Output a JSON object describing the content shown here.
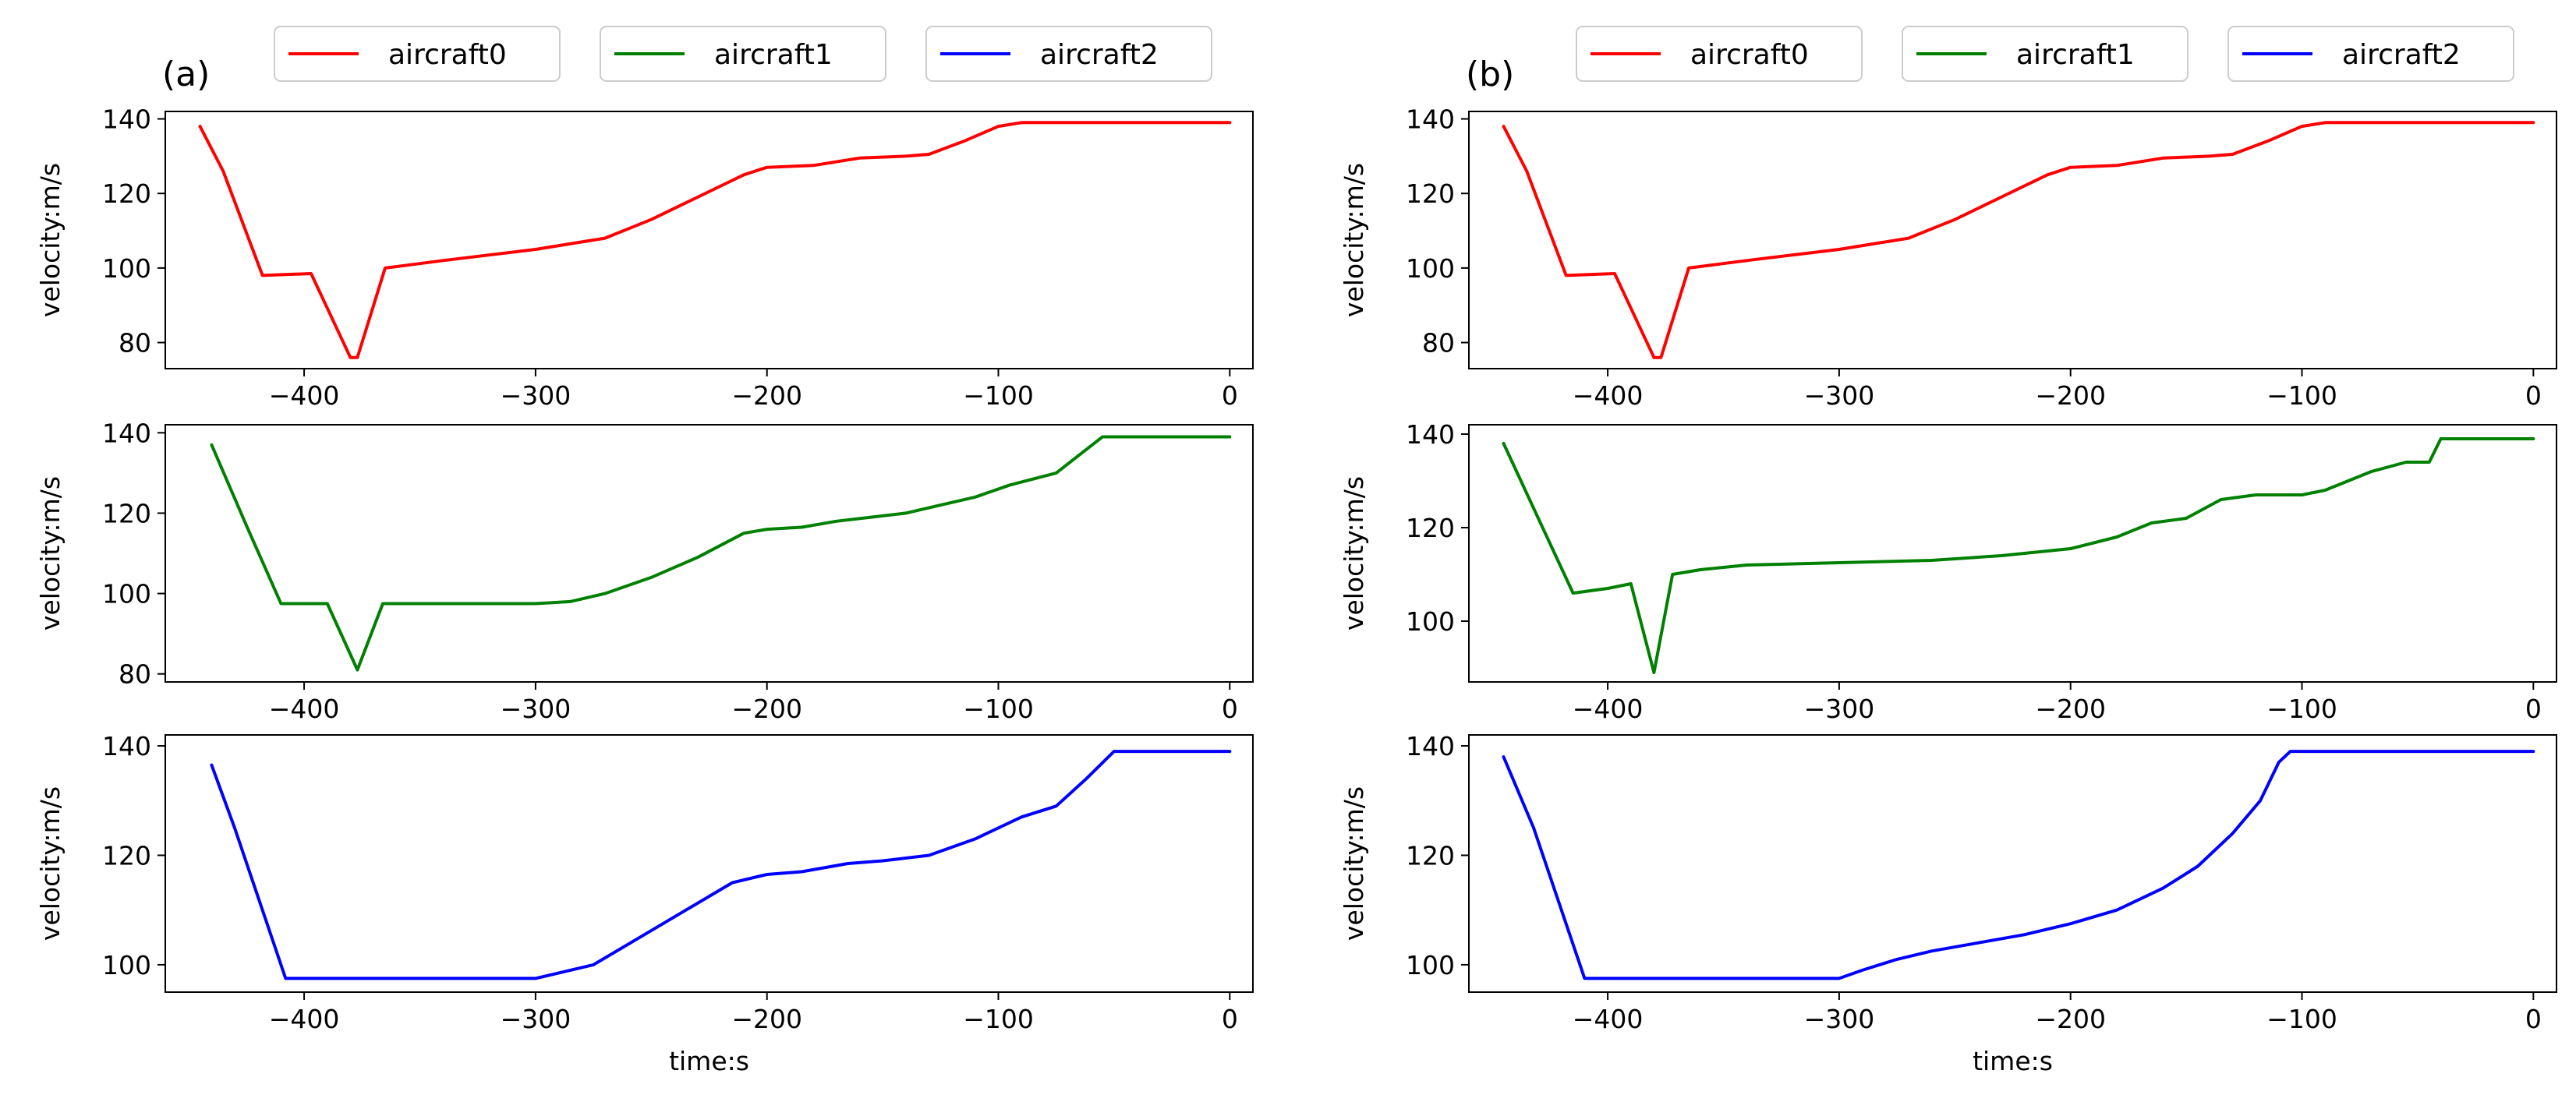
{
  "figure": {
    "panel_labels": [
      "(a)",
      "(b)"
    ],
    "legend": [
      {
        "label": "aircraft0",
        "color": "#ff0000"
      },
      {
        "label": "aircraft1",
        "color": "#008000"
      },
      {
        "label": "aircraft2",
        "color": "#0000ff"
      }
    ]
  },
  "chart_data": [
    {
      "type": "line",
      "panel": "(a)",
      "series_name": "aircraft0",
      "color": "#ff0000",
      "ylabel": "velocity:m/s",
      "xlabel": "",
      "xlim": [
        -460,
        10
      ],
      "ylim": [
        73,
        142
      ],
      "xticks": [
        -400,
        -300,
        -200,
        -100,
        0
      ],
      "xtick_labels": [
        "−400",
        "−300",
        "−200",
        "−100",
        "0"
      ],
      "yticks": [
        80,
        100,
        120,
        140
      ],
      "ytick_labels": [
        "80",
        "100",
        "120",
        "140"
      ],
      "points": [
        [
          -445,
          138
        ],
        [
          -435,
          126
        ],
        [
          -418,
          98
        ],
        [
          -397,
          98.5
        ],
        [
          -380,
          76
        ],
        [
          -377,
          76
        ],
        [
          -365,
          100
        ],
        [
          -340,
          102
        ],
        [
          -300,
          105
        ],
        [
          -270,
          108
        ],
        [
          -250,
          113
        ],
        [
          -230,
          119
        ],
        [
          -210,
          125
        ],
        [
          -200,
          127
        ],
        [
          -180,
          127.5
        ],
        [
          -160,
          129.5
        ],
        [
          -140,
          130
        ],
        [
          -130,
          130.5
        ],
        [
          -115,
          134
        ],
        [
          -100,
          138
        ],
        [
          -90,
          139
        ],
        [
          0,
          139
        ]
      ]
    },
    {
      "type": "line",
      "panel": "(a)",
      "series_name": "aircraft1",
      "color": "#008000",
      "ylabel": "velocity:m/s",
      "xlabel": "",
      "xlim": [
        -460,
        10
      ],
      "ylim": [
        78,
        142
      ],
      "xticks": [
        -400,
        -300,
        -200,
        -100,
        0
      ],
      "xtick_labels": [
        "−400",
        "−300",
        "−200",
        "−100",
        "0"
      ],
      "yticks": [
        80,
        100,
        120,
        140
      ],
      "ytick_labels": [
        "80",
        "100",
        "120",
        "140"
      ],
      "points": [
        [
          -440,
          137
        ],
        [
          -425,
          117
        ],
        [
          -410,
          97.5
        ],
        [
          -390,
          97.5
        ],
        [
          -377,
          81
        ],
        [
          -366,
          97.5
        ],
        [
          -300,
          97.5
        ],
        [
          -285,
          98
        ],
        [
          -270,
          100
        ],
        [
          -250,
          104
        ],
        [
          -230,
          109
        ],
        [
          -210,
          115
        ],
        [
          -200,
          116
        ],
        [
          -185,
          116.5
        ],
        [
          -170,
          118
        ],
        [
          -155,
          119
        ],
        [
          -140,
          120
        ],
        [
          -125,
          122
        ],
        [
          -110,
          124
        ],
        [
          -95,
          127
        ],
        [
          -75,
          130
        ],
        [
          -55,
          139
        ],
        [
          0,
          139
        ]
      ]
    },
    {
      "type": "line",
      "panel": "(a)",
      "series_name": "aircraft2",
      "color": "#0000ff",
      "ylabel": "velocity:m/s",
      "xlabel": "time:s",
      "xlim": [
        -460,
        10
      ],
      "ylim": [
        95,
        142
      ],
      "xticks": [
        -400,
        -300,
        -200,
        -100,
        0
      ],
      "xtick_labels": [
        "−400",
        "−300",
        "−200",
        "−100",
        "0"
      ],
      "yticks": [
        100,
        120,
        140
      ],
      "ytick_labels": [
        "100",
        "120",
        "140"
      ],
      "points": [
        [
          -440,
          136.5
        ],
        [
          -430,
          125
        ],
        [
          -408,
          97.5
        ],
        [
          -300,
          97.5
        ],
        [
          -290,
          98.5
        ],
        [
          -275,
          100
        ],
        [
          -255,
          105
        ],
        [
          -235,
          110
        ],
        [
          -215,
          115
        ],
        [
          -200,
          116.5
        ],
        [
          -185,
          117
        ],
        [
          -165,
          118.5
        ],
        [
          -150,
          119
        ],
        [
          -130,
          120
        ],
        [
          -110,
          123
        ],
        [
          -90,
          127
        ],
        [
          -75,
          129
        ],
        [
          -62,
          134
        ],
        [
          -50,
          139
        ],
        [
          0,
          139
        ]
      ]
    },
    {
      "type": "line",
      "panel": "(b)",
      "series_name": "aircraft0",
      "color": "#ff0000",
      "ylabel": "velocity:m/s",
      "xlabel": "",
      "xlim": [
        -460,
        10
      ],
      "ylim": [
        73,
        142
      ],
      "xticks": [
        -400,
        -300,
        -200,
        -100,
        0
      ],
      "xtick_labels": [
        "−400",
        "−300",
        "−200",
        "−100",
        "0"
      ],
      "yticks": [
        80,
        100,
        120,
        140
      ],
      "ytick_labels": [
        "80",
        "100",
        "120",
        "140"
      ],
      "points": [
        [
          -445,
          138
        ],
        [
          -435,
          126
        ],
        [
          -418,
          98
        ],
        [
          -397,
          98.5
        ],
        [
          -380,
          76
        ],
        [
          -377,
          76
        ],
        [
          -365,
          100
        ],
        [
          -340,
          102
        ],
        [
          -300,
          105
        ],
        [
          -270,
          108
        ],
        [
          -250,
          113
        ],
        [
          -230,
          119
        ],
        [
          -210,
          125
        ],
        [
          -200,
          127
        ],
        [
          -180,
          127.5
        ],
        [
          -160,
          129.5
        ],
        [
          -140,
          130
        ],
        [
          -130,
          130.5
        ],
        [
          -115,
          134
        ],
        [
          -100,
          138
        ],
        [
          -90,
          139
        ],
        [
          0,
          139
        ]
      ]
    },
    {
      "type": "line",
      "panel": "(b)",
      "series_name": "aircraft1",
      "color": "#008000",
      "ylabel": "velocity:m/s",
      "xlabel": "",
      "xlim": [
        -460,
        10
      ],
      "ylim": [
        87,
        142
      ],
      "xticks": [
        -400,
        -300,
        -200,
        -100,
        0
      ],
      "xtick_labels": [
        "−400",
        "−300",
        "−200",
        "−100",
        "0"
      ],
      "yticks": [
        100,
        120,
        140
      ],
      "ytick_labels": [
        "100",
        "120",
        "140"
      ],
      "points": [
        [
          -445,
          138
        ],
        [
          -430,
          122
        ],
        [
          -415,
          106
        ],
        [
          -400,
          107
        ],
        [
          -390,
          108
        ],
        [
          -380,
          89
        ],
        [
          -372,
          110
        ],
        [
          -360,
          111
        ],
        [
          -340,
          112
        ],
        [
          -300,
          112.5
        ],
        [
          -260,
          113
        ],
        [
          -230,
          114
        ],
        [
          -200,
          115.5
        ],
        [
          -180,
          118
        ],
        [
          -165,
          121
        ],
        [
          -150,
          122
        ],
        [
          -135,
          126
        ],
        [
          -120,
          127
        ],
        [
          -100,
          127
        ],
        [
          -90,
          128
        ],
        [
          -70,
          132
        ],
        [
          -55,
          134
        ],
        [
          -45,
          134
        ],
        [
          -40,
          139
        ],
        [
          0,
          139
        ]
      ]
    },
    {
      "type": "line",
      "panel": "(b)",
      "series_name": "aircraft2",
      "color": "#0000ff",
      "ylabel": "velocity:m/s",
      "xlabel": "time:s",
      "xlim": [
        -460,
        10
      ],
      "ylim": [
        95,
        142
      ],
      "xticks": [
        -400,
        -300,
        -200,
        -100,
        0
      ],
      "xtick_labels": [
        "−400",
        "−300",
        "−200",
        "−100",
        "0"
      ],
      "yticks": [
        100,
        120,
        140
      ],
      "ytick_labels": [
        "100",
        "120",
        "140"
      ],
      "points": [
        [
          -445,
          138
        ],
        [
          -432,
          125
        ],
        [
          -410,
          97.5
        ],
        [
          -380,
          97.5
        ],
        [
          -300,
          97.5
        ],
        [
          -290,
          99
        ],
        [
          -275,
          101
        ],
        [
          -260,
          102.5
        ],
        [
          -240,
          104
        ],
        [
          -220,
          105.5
        ],
        [
          -200,
          107.5
        ],
        [
          -180,
          110
        ],
        [
          -160,
          114
        ],
        [
          -145,
          118
        ],
        [
          -130,
          124
        ],
        [
          -118,
          130
        ],
        [
          -110,
          137
        ],
        [
          -105,
          139
        ],
        [
          0,
          139
        ]
      ]
    }
  ]
}
